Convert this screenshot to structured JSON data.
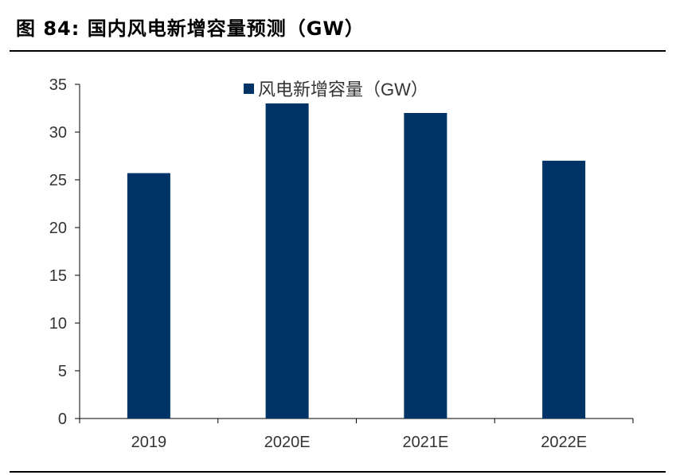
{
  "header": {
    "title": "图 84:  国内风电新增容量预测（GW）"
  },
  "colors": {
    "bar": "#003366",
    "axis": "#000000",
    "text": "#333333"
  },
  "chart_data": {
    "type": "bar",
    "categories": [
      "2019",
      "2020E",
      "2021E",
      "2022E"
    ],
    "series": [
      {
        "name": "风电新增容量（GW）",
        "values": [
          25.7,
          33,
          32,
          27
        ]
      }
    ],
    "yticks": [
      "0",
      "5",
      "10",
      "15",
      "20",
      "25",
      "30",
      "35"
    ],
    "ylim": [
      0,
      35
    ],
    "grid": false,
    "legend": "top-center"
  }
}
